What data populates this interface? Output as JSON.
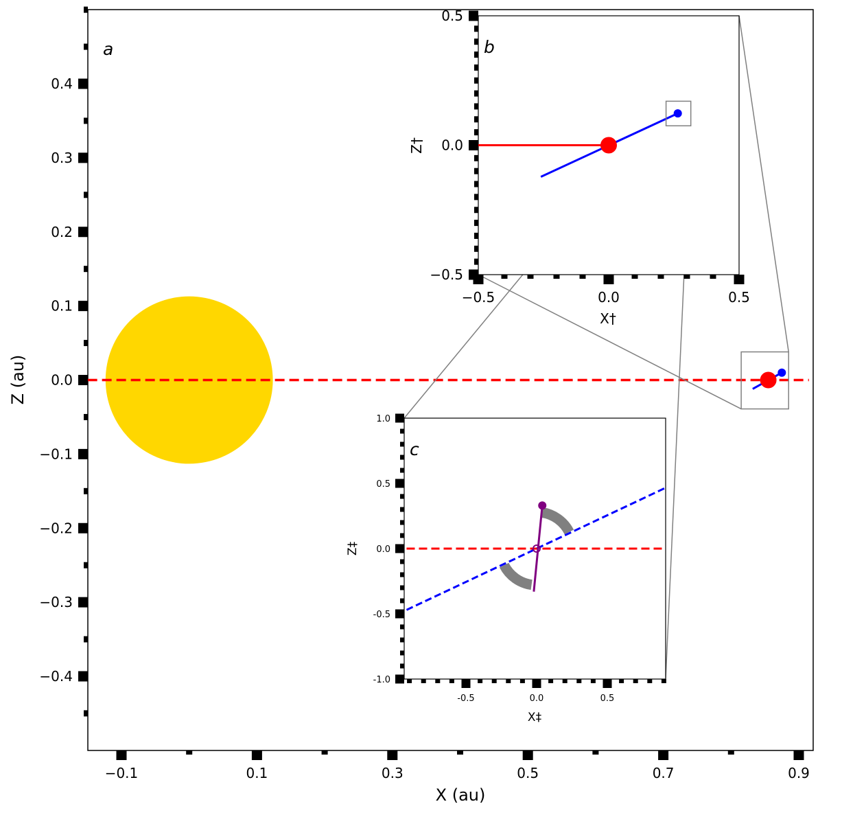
{
  "chart_data": [
    {
      "panel": "a",
      "type": "scatter",
      "panel_label": "a",
      "xlabel": "X (au)",
      "ylabel": "Z (au)",
      "xlim": [
        -0.15,
        0.915
      ],
      "ylim": [
        -0.5,
        0.5
      ],
      "x_major_ticks": [
        {
          "value": -0.1,
          "label": "−0.1"
        },
        {
          "value": 0.1,
          "label": "0.1"
        },
        {
          "value": 0.3,
          "label": "0.3"
        },
        {
          "value": 0.5,
          "label": "0.5"
        },
        {
          "value": 0.7,
          "label": "0.7"
        },
        {
          "value": 0.9,
          "label": "0.9"
        }
      ],
      "x_minor_ticks": [
        0.0,
        0.2,
        0.4,
        0.6,
        0.8
      ],
      "y_major_ticks": [
        {
          "value": 0.4,
          "label": "0.4"
        },
        {
          "value": 0.3,
          "label": "0.3"
        },
        {
          "value": 0.2,
          "label": "0.2"
        },
        {
          "value": 0.1,
          "label": "0.1"
        },
        {
          "value": 0.0,
          "label": "0.0"
        },
        {
          "value": -0.1,
          "label": "−0.1"
        },
        {
          "value": -0.2,
          "label": "−0.2"
        },
        {
          "value": -0.3,
          "label": "−0.3"
        },
        {
          "value": -0.4,
          "label": "−0.4"
        }
      ],
      "y_minor_ticks": [
        0.5,
        0.45,
        0.35,
        0.25,
        0.15,
        0.05,
        -0.05,
        -0.15,
        -0.25,
        -0.35,
        -0.45
      ],
      "sun": {
        "x": 0.0,
        "z": 0.0,
        "radius_au": 0.1235,
        "color": "#FFD700"
      },
      "reference_line": {
        "z": 0.0,
        "x_from": -0.15,
        "x_to": 0.915,
        "style": "dashed",
        "color": "#FF0000"
      },
      "earth": {
        "x": 0.855,
        "z": 0.0,
        "color": "#FF0000"
      },
      "moon": {
        "x": 0.875,
        "z": 0.01,
        "color": "#0000FF"
      },
      "moon_orbit_segment": {
        "x_from": 0.832,
        "z_from": -0.012,
        "x_to": 0.875,
        "z_to": 0.01,
        "color": "#0000FF"
      },
      "zoom_box": {
        "x0": 0.815,
        "x1": 0.885,
        "z0": -0.039,
        "z1": 0.038,
        "color": "#808080"
      }
    },
    {
      "panel": "b",
      "type": "scatter",
      "panel_label": "b",
      "xlabel": "X†",
      "ylabel": "Z†",
      "xlim": [
        -0.5,
        0.5
      ],
      "ylim": [
        -0.5,
        0.5
      ],
      "x_major_ticks": [
        {
          "value": -0.5,
          "label": "−0.5"
        },
        {
          "value": 0.0,
          "label": "0.0"
        },
        {
          "value": 0.5,
          "label": "0.5"
        }
      ],
      "x_minor_ticks": [
        -0.4,
        -0.3,
        -0.2,
        -0.1,
        0.1,
        0.2,
        0.3,
        0.4
      ],
      "y_major_ticks": [
        {
          "value": 0.5,
          "label": "0.5"
        },
        {
          "value": 0.0,
          "label": "0.0"
        },
        {
          "value": -0.5,
          "label": "−0.5"
        }
      ],
      "y_minor_ticks": [
        0.45,
        0.4,
        0.35,
        0.3,
        0.25,
        0.2,
        0.15,
        0.1,
        0.05,
        -0.05,
        -0.1,
        -0.15,
        -0.2,
        -0.25,
        -0.3,
        -0.35,
        -0.4,
        -0.45
      ],
      "sun_direction_line": {
        "z": 0.0,
        "x_from": -0.5,
        "x_to": 0.0,
        "color": "#FF0000"
      },
      "earth": {
        "x": 0.0,
        "z": 0.0,
        "color": "#FF0000"
      },
      "moon": {
        "x": 0.265,
        "z": 0.123,
        "color": "#0000FF"
      },
      "moon_orbit_segment": {
        "x_from": -0.26,
        "z_from": -0.122,
        "x_to": 0.265,
        "z_to": 0.123,
        "color": "#0000FF"
      },
      "zoom_box": {
        "x0": 0.22,
        "x1": 0.315,
        "z0": 0.075,
        "z1": 0.17,
        "color": "#808080"
      }
    },
    {
      "panel": "c",
      "type": "scatter",
      "panel_label": "c",
      "xlabel": "X‡",
      "ylabel": "Z‡",
      "xlim": [
        -0.92,
        0.92
      ],
      "ylim": [
        -1.0,
        1.0
      ],
      "x_major_ticks": [
        {
          "value": -0.5,
          "label": "-0.5"
        },
        {
          "value": 0.0,
          "label": "0.0"
        },
        {
          "value": 0.5,
          "label": "0.5"
        }
      ],
      "x_minor_ticks": [
        -0.9,
        -0.8,
        -0.7,
        -0.6,
        -0.4,
        -0.3,
        -0.2,
        -0.1,
        0.1,
        0.2,
        0.3,
        0.4,
        0.6,
        0.7,
        0.8,
        0.9
      ],
      "y_major_ticks": [
        {
          "value": 1.0,
          "label": "1.0"
        },
        {
          "value": 0.5,
          "label": "0.5"
        },
        {
          "value": 0.0,
          "label": "0.0"
        },
        {
          "value": -0.5,
          "label": "-0.5"
        },
        {
          "value": -1.0,
          "label": "-1.0"
        }
      ],
      "y_minor_ticks": [
        0.9,
        0.8,
        0.7,
        0.6,
        0.4,
        0.3,
        0.2,
        0.1,
        -0.1,
        -0.2,
        -0.3,
        -0.4,
        -0.6,
        -0.7,
        -0.8,
        -0.9
      ],
      "sun_direction_line": {
        "z": 0.0,
        "x_from": -0.92,
        "x_to": 0.92,
        "style": "dashed",
        "color": "#FF0000"
      },
      "moon_orbit_line": {
        "x_from": -0.92,
        "z_from": -0.47,
        "x_to": 0.92,
        "z_to": 0.47,
        "style": "dashed",
        "color": "#0000FF"
      },
      "spin_axis": {
        "x_from": -0.02,
        "z_from": -0.33,
        "x_to": 0.04,
        "z_to": 0.33,
        "color": "#800080"
      },
      "spin_axis_tip": {
        "x": 0.04,
        "z": 0.33,
        "color": "#800080"
      },
      "origin": {
        "x": 0.0,
        "z": 0.0,
        "color": "#800080"
      },
      "angle_arcs": [
        {
          "radius": 0.28,
          "theta_from_deg": 27,
          "theta_to_deg": 82,
          "color": "#808080"
        },
        {
          "radius": 0.28,
          "theta_from_deg": 207,
          "theta_to_deg": 262,
          "color": "#808080"
        }
      ]
    }
  ],
  "colors": {
    "sun": "#FFD700",
    "sun_direction": "#FF0000",
    "moon": "#0000FF",
    "spin_axis": "#800080",
    "arcs": "#808080",
    "connectors": "#808080"
  }
}
